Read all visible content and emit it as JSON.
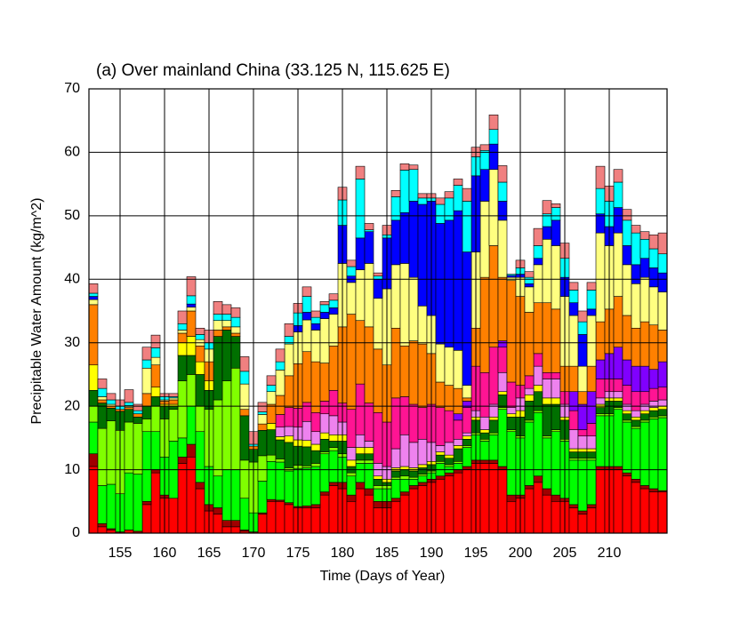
{
  "chart_data": {
    "type": "bar",
    "stacked": true,
    "title": "(a) Over mainland China (33.125 N, 115.625 E)",
    "x_label": "Time (Days of Year)",
    "y_label": "Precipitable Water Amount (kg/m^2)",
    "x": [
      152,
      153,
      154,
      155,
      156,
      157,
      158,
      159,
      160,
      161,
      162,
      163,
      164,
      165,
      166,
      167,
      168,
      169,
      170,
      171,
      172,
      173,
      174,
      175,
      176,
      177,
      178,
      179,
      180,
      181,
      182,
      183,
      184,
      185,
      186,
      187,
      188,
      189,
      190,
      191,
      192,
      193,
      194,
      195,
      196,
      197,
      198,
      199,
      200,
      201,
      202,
      203,
      204,
      205,
      206,
      207,
      208,
      209,
      210,
      211,
      212,
      213,
      214,
      215,
      216
    ],
    "xlim": [
      151.5,
      216.5
    ],
    "xticks": [
      155,
      160,
      165,
      170,
      175,
      180,
      185,
      190,
      195,
      200,
      205,
      210
    ],
    "ylim": [
      0,
      70
    ],
    "yticks": [
      0,
      10,
      20,
      30,
      40,
      50,
      60,
      70
    ],
    "grid": true,
    "series": [
      {
        "color": "#ff0000",
        "values": [
          10.5,
          1,
          0.5,
          0,
          0.5,
          0,
          4.5,
          9.5,
          5.5,
          5.5,
          11,
          12,
          7,
          3.5,
          3,
          1,
          1,
          0.3,
          0,
          3,
          5,
          5,
          4.5,
          4,
          4,
          4,
          6,
          7.5,
          7,
          5,
          7,
          6,
          4,
          4,
          5,
          6,
          7,
          7.5,
          8,
          8.5,
          9,
          9.5,
          10,
          11,
          11,
          11,
          10,
          5,
          5.5,
          7,
          8,
          6,
          5,
          5,
          4,
          3,
          4,
          10,
          10,
          10,
          9,
          8,
          7,
          6.5,
          6.5
        ]
      },
      {
        "color": "#a00000",
        "values": [
          2,
          0.5,
          0.2,
          0.2,
          0,
          0.3,
          0.5,
          0.5,
          0.5,
          0,
          1,
          2,
          1,
          1,
          1,
          1,
          1,
          0.2,
          0.2,
          0.2,
          0.3,
          0.2,
          0.3,
          0.2,
          0.3,
          0.5,
          0.5,
          0.5,
          1,
          1,
          1,
          1,
          1,
          1,
          0.5,
          0.5,
          0.5,
          0.5,
          0.5,
          0.5,
          0.5,
          0.5,
          0.5,
          0.5,
          0.5,
          0.5,
          0.5,
          1,
          0.5,
          0.5,
          1,
          1,
          1,
          0.5,
          0.5,
          0.5,
          0.5,
          0.5,
          0.5,
          0.5,
          0.5,
          0.5,
          0.5,
          0.5,
          0.2
        ]
      },
      {
        "color": "#00ff00",
        "values": [
          5,
          6,
          7,
          6,
          9,
          9,
          11,
          6,
          6,
          9,
          3,
          6,
          8,
          6,
          5,
          8,
          8,
          5,
          3,
          5,
          6,
          6,
          5,
          6,
          6,
          6,
          6,
          5,
          4,
          3,
          3,
          4,
          2,
          2,
          3,
          2,
          1,
          1,
          1,
          2,
          1,
          1,
          3,
          4,
          3,
          4,
          9,
          10,
          9,
          10,
          10,
          8,
          10,
          9,
          7,
          8,
          7,
          8,
          8,
          9,
          8,
          8,
          10,
          11,
          11.5
        ]
      },
      {
        "color": "#80ff00",
        "values": [
          2.5,
          9,
          10,
          10,
          8,
          8,
          2,
          4,
          6,
          5,
          9,
          5,
          4,
          9,
          12,
          14,
          16,
          6,
          8,
          4,
          1,
          0.5,
          0.5,
          0.5,
          0.3,
          0.5,
          0.3,
          0.5,
          0.5,
          0.5,
          0.5,
          0.5,
          0.5,
          0.5,
          0.3,
          0.5,
          0.3,
          0.3,
          0.3,
          0.3,
          0.3,
          0.3,
          0.3,
          0.3,
          0.3,
          0.3,
          0.3,
          0.3,
          0.3,
          0.3,
          0.3,
          0.3,
          0.3,
          0.3,
          0.3,
          0.3,
          0.3,
          0.3,
          0.3,
          0.3,
          0.3,
          0.3,
          0.3,
          0.3,
          0.3
        ]
      },
      {
        "color": "#007000",
        "values": [
          2.5,
          4,
          2,
          3,
          2,
          1,
          2,
          1.5,
          2,
          0.5,
          4,
          3,
          5,
          3,
          10,
          8,
          5,
          7,
          2,
          4,
          4,
          3,
          4,
          3,
          3,
          2,
          2,
          1,
          2,
          1,
          1,
          1,
          1,
          0.5,
          1,
          1,
          1,
          1,
          1,
          1,
          1,
          2,
          1,
          2,
          1,
          2,
          2,
          2,
          3,
          3,
          3,
          5,
          4,
          3,
          1,
          1,
          1,
          1,
          2,
          1,
          1,
          1,
          1,
          1,
          1
        ]
      },
      {
        "color": "#ffff00",
        "values": [
          4,
          0,
          0,
          0,
          0,
          0,
          0,
          1.5,
          0.3,
          0.3,
          2,
          3,
          2,
          1.5,
          0,
          0,
          0,
          0,
          0,
          0,
          1,
          0.5,
          1,
          1,
          1,
          1,
          1,
          1,
          1,
          1,
          1,
          1,
          0.5,
          0.5,
          0.5,
          0.5,
          0.5,
          0.5,
          0.5,
          0.5,
          0.5,
          0.5,
          0.5,
          0.5,
          0.5,
          0.5,
          0.5,
          0.5,
          1,
          1,
          1,
          1,
          1,
          0.5,
          0.5,
          0.5,
          0.5,
          0.5,
          0.5,
          0.5,
          0.5,
          0.5,
          0.5,
          0.5,
          0.5
        ]
      },
      {
        "color": "#ee82ee",
        "values": [
          0,
          0,
          0,
          0,
          0,
          0,
          0,
          0,
          0,
          0,
          0,
          0,
          0,
          0,
          0,
          0,
          0,
          0,
          0,
          0,
          0,
          1.5,
          1.5,
          2,
          3,
          2,
          3,
          3,
          2,
          2,
          2,
          1,
          2,
          2,
          3,
          5,
          4,
          4,
          3,
          1,
          2,
          1,
          0.5,
          1,
          2,
          2,
          3,
          1,
          2,
          1,
          3,
          3,
          3,
          2,
          3,
          2,
          2,
          1,
          1,
          1,
          1,
          1,
          1,
          1,
          1
        ]
      },
      {
        "color": "#ff1493",
        "values": [
          0,
          0,
          0,
          0,
          0,
          0,
          0,
          0,
          0,
          0,
          0,
          0,
          0,
          0,
          0,
          0,
          0,
          0,
          0,
          0,
          0,
          2,
          3,
          3,
          3,
          3,
          2,
          4,
          3,
          6,
          8,
          6,
          8,
          7,
          8,
          6,
          6,
          5,
          6,
          6,
          5,
          3,
          4,
          7,
          7,
          9,
          4,
          4,
          2,
          2,
          2,
          1,
          1,
          2,
          3,
          1,
          2,
          3,
          2,
          2,
          3,
          3,
          2,
          2,
          2
        ]
      },
      {
        "color": "#8000ff",
        "values": [
          0,
          0,
          0,
          0,
          0,
          0,
          0,
          0,
          0,
          0,
          0,
          0,
          0,
          0,
          0,
          0,
          0,
          0,
          0,
          0,
          0,
          0,
          0,
          0,
          0,
          0,
          0,
          0,
          0,
          0,
          0,
          0,
          0,
          0,
          0,
          0,
          0,
          0,
          0,
          0,
          0,
          1,
          1,
          0,
          0,
          0,
          1,
          0,
          0,
          0,
          0,
          0,
          0,
          0,
          3,
          4,
          5,
          3,
          4,
          5,
          4,
          4,
          4,
          3,
          4
        ]
      },
      {
        "color": "#ff8000",
        "values": [
          9.5,
          0.5,
          0.3,
          0.3,
          0.3,
          0.5,
          2,
          3.5,
          0.5,
          0.7,
          1.5,
          4,
          2.5,
          3,
          1,
          0.5,
          0.5,
          1,
          0.5,
          1,
          3,
          3,
          5,
          7,
          8,
          8,
          6,
          7,
          12,
          15,
          10,
          12,
          10,
          9,
          11,
          8,
          10,
          10,
          8,
          4,
          4,
          4,
          0.5,
          6,
          15,
          16,
          10,
          16,
          14,
          10,
          8,
          11,
          10,
          4,
          4,
          2,
          4,
          6,
          7,
          8,
          7,
          6,
          7,
          7,
          5
        ]
      },
      {
        "color": "#ffff80",
        "values": [
          0.8,
          0.5,
          0.3,
          0,
          0.3,
          0,
          4,
          1.2,
          0.2,
          0.3,
          0.5,
          0.6,
          1,
          2,
          1.5,
          1,
          1,
          4,
          0,
          1.5,
          2,
          4,
          5,
          5,
          5,
          5,
          7,
          5,
          10,
          5,
          8,
          10,
          8,
          12,
          10,
          13,
          10,
          6,
          6,
          6,
          6,
          6,
          2,
          12,
          12,
          12,
          9,
          0.5,
          3,
          4,
          6,
          10,
          10,
          11,
          8,
          4,
          8,
          14,
          10,
          10,
          8,
          7,
          7,
          6,
          6
        ]
      },
      {
        "color": "#0000ff",
        "values": [
          0.5,
          0,
          0,
          0,
          0,
          0,
          0,
          0,
          0,
          0,
          0,
          0.5,
          0,
          0,
          0,
          0,
          0,
          0,
          0,
          0,
          0,
          0,
          0,
          1,
          1.2,
          1,
          1,
          1,
          6,
          1,
          5,
          5,
          3,
          8,
          7,
          8,
          12,
          16,
          18,
          19,
          20,
          22,
          21,
          12,
          5,
          4,
          3,
          0.3,
          0.5,
          0.5,
          1,
          2,
          4,
          3,
          2,
          5,
          1,
          3,
          3,
          4,
          3,
          3,
          3,
          3,
          3
        ]
      },
      {
        "color": "#00ffff",
        "values": [
          0.5,
          1.3,
          0.7,
          0.5,
          0.5,
          0.5,
          1.3,
          1.5,
          0.5,
          0.2,
          1,
          1.3,
          0.8,
          1,
          1,
          1,
          1.5,
          2,
          0.3,
          0.4,
          1,
          1.3,
          1.2,
          2,
          2.5,
          1,
          1.2,
          1.2,
          4,
          1.5,
          9.3,
          0.3,
          0.5,
          0.5,
          3.7,
          6.7,
          5,
          1,
          0.5,
          3,
          3.5,
          4,
          8,
          3,
          3,
          2.3,
          3,
          0.2,
          1,
          1,
          2,
          2,
          2,
          3,
          2,
          2,
          3,
          4,
          4,
          4,
          4,
          5,
          3,
          3,
          3
        ]
      },
      {
        "color": "#f08080",
        "values": [
          1.5,
          1.5,
          1,
          1,
          2,
          1,
          2,
          2,
          0.5,
          0.5,
          2,
          3,
          1,
          2,
          2,
          1.5,
          1.5,
          2.3,
          2,
          1.5,
          1.5,
          2,
          2,
          1.5,
          1.5,
          1,
          0.5,
          1,
          2,
          1,
          2,
          1,
          0.5,
          1.5,
          1,
          1,
          0.7,
          0.7,
          0.7,
          1,
          1,
          1,
          2,
          1.5,
          0.9,
          2.3,
          2.6,
          0,
          1.2,
          0.9,
          2.7,
          2.1,
          0.6,
          2.4,
          1.2,
          1.7,
          1.2,
          3.5,
          2.4,
          2,
          1.7,
          1.2,
          1.2,
          2.2,
          3.3
        ]
      }
    ]
  }
}
